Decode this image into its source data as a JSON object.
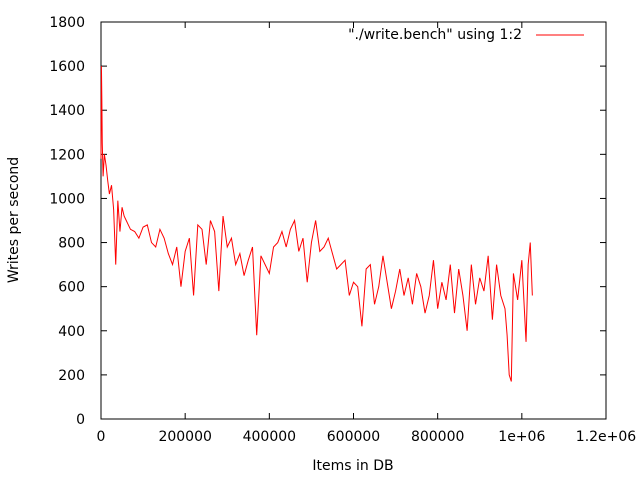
{
  "chart_data": {
    "type": "line",
    "title": "",
    "xlabel": "Items in DB",
    "ylabel": "Writes per second",
    "xlim": [
      0,
      1200000
    ],
    "ylim": [
      0,
      1800
    ],
    "grid": false,
    "legend_position": "top-right",
    "x_tick_labels": [
      "0",
      "200000",
      "400000",
      "600000",
      "800000",
      "1e+06",
      "1.2e+06"
    ],
    "x_tick_values": [
      0,
      200000,
      400000,
      600000,
      800000,
      1000000,
      1200000
    ],
    "y_tick_labels": [
      "0",
      "200",
      "400",
      "600",
      "800",
      "1000",
      "1200",
      "1400",
      "1600",
      "1800"
    ],
    "y_tick_values": [
      0,
      200,
      400,
      600,
      800,
      1000,
      1200,
      1400,
      1600,
      1800
    ],
    "series": [
      {
        "name": "\"./write.bench\" using 1:2",
        "color": "#ff0000",
        "x": [
          0,
          1000,
          2000,
          3000,
          5000,
          8000,
          12000,
          16000,
          20000,
          25000,
          30000,
          35000,
          40000,
          45000,
          50000,
          55000,
          60000,
          65000,
          70000,
          80000,
          90000,
          100000,
          110000,
          120000,
          130000,
          140000,
          150000,
          160000,
          170000,
          180000,
          190000,
          200000,
          210000,
          220000,
          230000,
          240000,
          250000,
          260000,
          270000,
          280000,
          290000,
          300000,
          310000,
          320000,
          330000,
          340000,
          350000,
          360000,
          370000,
          380000,
          390000,
          400000,
          410000,
          420000,
          430000,
          440000,
          450000,
          460000,
          470000,
          480000,
          490000,
          500000,
          510000,
          520000,
          530000,
          540000,
          550000,
          560000,
          570000,
          580000,
          590000,
          600000,
          610000,
          620000,
          630000,
          640000,
          650000,
          660000,
          670000,
          680000,
          690000,
          700000,
          710000,
          720000,
          730000,
          740000,
          750000,
          760000,
          770000,
          780000,
          790000,
          800000,
          810000,
          820000,
          830000,
          840000,
          850000,
          860000,
          870000,
          880000,
          890000,
          900000,
          910000,
          920000,
          930000,
          940000,
          950000,
          960000,
          965000,
          970000,
          975000,
          980000,
          990000,
          1000000,
          1010000,
          1015000,
          1020000,
          1025000
        ],
        "y": [
          1180,
          1600,
          1450,
          1250,
          1100,
          1200,
          1150,
          1080,
          1020,
          1060,
          950,
          700,
          990,
          850,
          960,
          920,
          900,
          880,
          860,
          850,
          820,
          870,
          880,
          800,
          780,
          860,
          820,
          750,
          700,
          780,
          600,
          760,
          820,
          560,
          880,
          860,
          700,
          900,
          850,
          580,
          920,
          780,
          820,
          700,
          750,
          650,
          720,
          780,
          380,
          740,
          700,
          660,
          780,
          800,
          850,
          780,
          860,
          900,
          760,
          820,
          620,
          800,
          900,
          760,
          780,
          820,
          750,
          680,
          700,
          720,
          560,
          620,
          600,
          420,
          680,
          700,
          520,
          600,
          740,
          620,
          500,
          580,
          680,
          560,
          640,
          520,
          660,
          600,
          480,
          560,
          720,
          500,
          620,
          540,
          700,
          480,
          680,
          560,
          400,
          700,
          520,
          640,
          580,
          740,
          450,
          700,
          560,
          500,
          380,
          200,
          170,
          660,
          540,
          720,
          350,
          700,
          800,
          560
        ]
      }
    ]
  }
}
